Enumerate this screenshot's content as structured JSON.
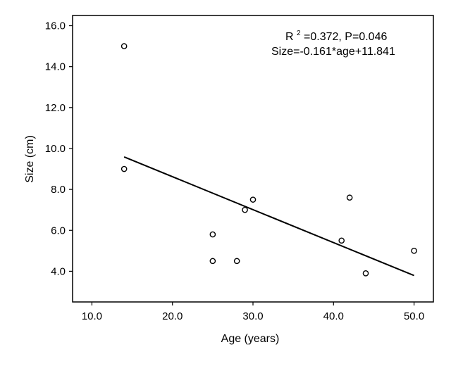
{
  "chart_data": {
    "type": "scatter",
    "title": "",
    "xlabel": "Age (years)",
    "ylabel": "Size (cm)",
    "xlim": [
      7.6,
      52.4
    ],
    "ylim": [
      2.5,
      16.5
    ],
    "x_ticks": [
      10,
      20,
      30,
      40,
      50
    ],
    "x_tick_labels": [
      "10.0",
      "20.0",
      "30.0",
      "40.0",
      "50.0"
    ],
    "y_ticks": [
      4,
      6,
      8,
      10,
      12,
      14,
      16
    ],
    "y_tick_labels": [
      "4.0",
      "6.0",
      "8.0",
      "10.0",
      "12.0",
      "14.0",
      "16.0"
    ],
    "grid": false,
    "annotations": {
      "line1_prefix": "R",
      "line1_sup": "2",
      "line1_rest": "=0.372, P=0.046",
      "line2": "Size=-0.161*age+11.841"
    },
    "points": [
      {
        "x": 14,
        "y": 15.0
      },
      {
        "x": 14,
        "y": 9.0
      },
      {
        "x": 25,
        "y": 5.8
      },
      {
        "x": 25,
        "y": 4.5
      },
      {
        "x": 28,
        "y": 4.5
      },
      {
        "x": 29,
        "y": 7.0
      },
      {
        "x": 30,
        "y": 7.5
      },
      {
        "x": 41,
        "y": 5.5
      },
      {
        "x": 42,
        "y": 7.6
      },
      {
        "x": 44,
        "y": 3.9
      },
      {
        "x": 50,
        "y": 5.0
      }
    ],
    "fit_line": {
      "slope": -0.161,
      "intercept": 11.841,
      "x_range": [
        14,
        50
      ]
    },
    "colors": {
      "axis": "#000000",
      "marker": "#000000",
      "line": "#000000"
    }
  }
}
